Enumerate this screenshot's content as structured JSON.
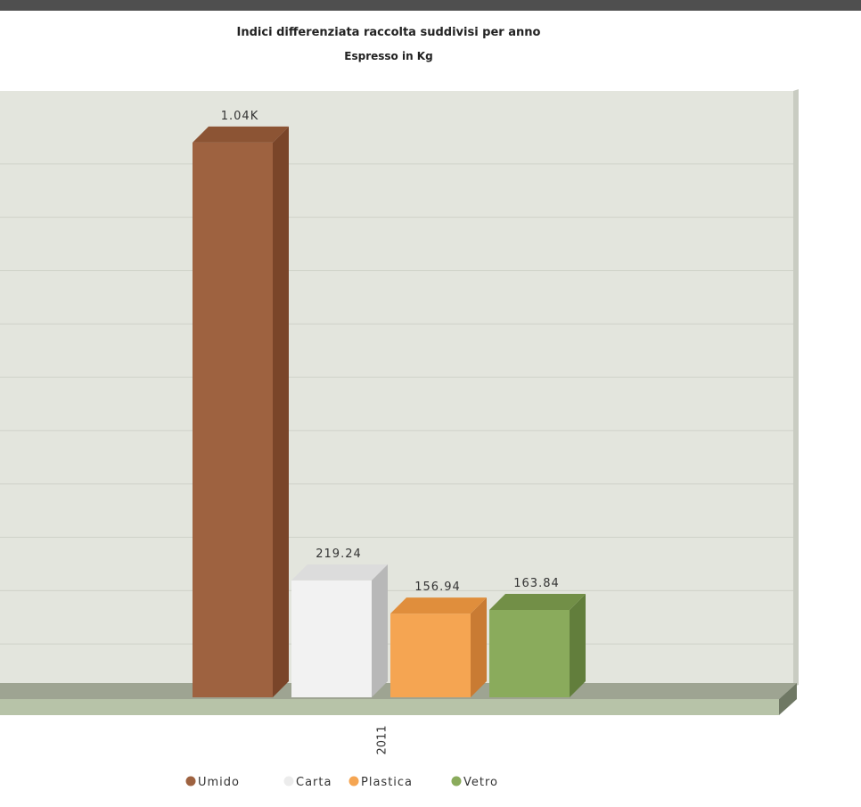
{
  "chart_data": {
    "type": "bar",
    "title": "Indici differenziata raccolta suddivisi per anno",
    "subtitle": "Espresso in Kg",
    "categories": [
      "2011"
    ],
    "series": [
      {
        "name": "Umido",
        "values": [
          1040
        ],
        "label": "1.04K",
        "color": "#9e6240",
        "side_color": "#7a4529",
        "top_color": "#8c5434"
      },
      {
        "name": "Carta",
        "values": [
          219.24
        ],
        "label": "219.24",
        "color": "#f2f2f2",
        "side_color": "#b8b8b8",
        "top_color": "#dcdcdc"
      },
      {
        "name": "Plastica",
        "values": [
          156.94
        ],
        "label": "156.94",
        "color": "#f5a552",
        "side_color": "#c97b33",
        "top_color": "#e08e3c"
      },
      {
        "name": "Vetro",
        "values": [
          163.84
        ],
        "label": "163.84",
        "color": "#8aab5c",
        "side_color": "#627e3c",
        "top_color": "#728f47"
      }
    ],
    "ylim": [
      0,
      1100
    ],
    "grid": true,
    "legend_position": "bottom",
    "plot_background": "#e3e5dd",
    "floor_color": "#b7c3a8"
  }
}
